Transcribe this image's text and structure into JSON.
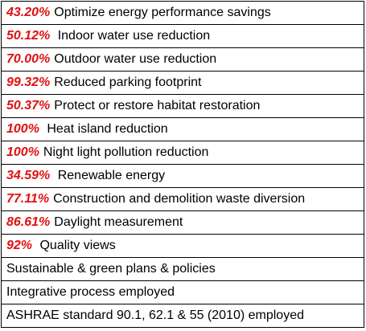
{
  "rows": [
    {
      "percent": "43.20%",
      "label": "Optimize energy performance savings"
    },
    {
      "percent": "50.12%",
      "label": " Indoor water use reduction"
    },
    {
      "percent": "70.00%",
      "label": "Outdoor water use reduction"
    },
    {
      "percent": "99.32%",
      "label": "Reduced parking footprint"
    },
    {
      "percent": "50.37%",
      "label": "Protect or restore habitat restoration"
    },
    {
      "percent": "100%",
      "label": " Heat island reduction"
    },
    {
      "percent": "100%",
      "label": "Night light pollution reduction"
    },
    {
      "percent": "34.59%",
      "label": " Renewable energy"
    },
    {
      "percent": "77.11%",
      "label": "Construction and demolition waste diversion"
    },
    {
      "percent": "86.61%",
      "label": "Daylight measurement"
    },
    {
      "percent": "92%",
      "label": " Quality views"
    },
    {
      "percent": "",
      "label": "Sustainable & green plans & policies"
    },
    {
      "percent": "",
      "label": "Integrative process employed"
    },
    {
      "percent": "",
      "label": "ASHRAE standard 90.1, 62.1 & 55 (2010) employed"
    }
  ],
  "colors": {
    "percent_text": "#e01010",
    "label_text": "#000000",
    "border": "#000000",
    "background": "#ffffff"
  }
}
